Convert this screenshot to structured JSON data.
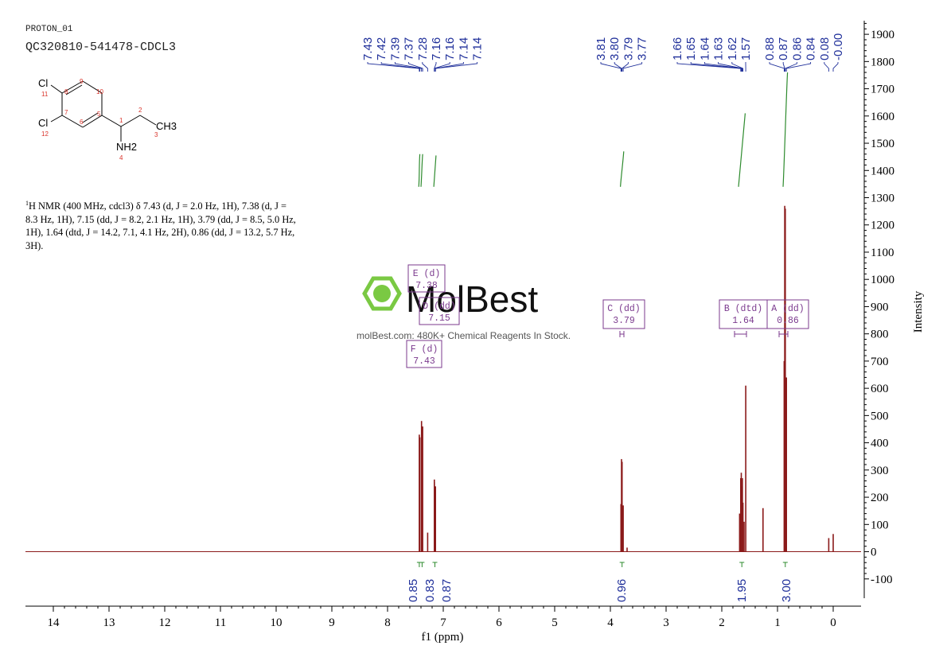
{
  "header": {
    "line1": "PROTON_01",
    "line2": "QC320810-541478-CDCL3"
  },
  "structure": {
    "atoms": [
      "Cl",
      "Cl",
      "CH3",
      "NH2"
    ],
    "atom_numbers": [
      "1",
      "2",
      "3",
      "4",
      "5",
      "6",
      "7",
      "8",
      "9",
      "10",
      "11",
      "12"
    ]
  },
  "nmr_text": {
    "nucleus_sup": "1",
    "line": "H NMR (400 MHz, cdcl3) δ 7.43 (d, J = 2.0 Hz, 1H), 7.38 (d, J = 8.3 Hz, 1H), 7.15 (dd, J = 8.2, 2.1 Hz, 1H), 3.79 (dd, J = 8.5, 5.0 Hz, 1H), 1.64 (dtd, J = 14.2, 7.1, 4.1 Hz, 2H), 0.86 (dd, J = 13.2, 5.7 Hz, 3H)."
  },
  "watermark": {
    "brand": "MolBest",
    "tagline": "molBest.com: 480K+ Chemical Reagents In Stock."
  },
  "colors": {
    "spectrum": "#8b1a1a",
    "peak_label": "#1f2f9a",
    "integral": "#2e8b2e",
    "multiplet": "#7b3a8e",
    "logo": "#7ac943"
  },
  "chart_data": {
    "type": "line",
    "xlabel": "f1 (ppm)",
    "ylabel": "Intensity",
    "xlim": [
      14.5,
      -0.5
    ],
    "ylim": [
      -200,
      1950
    ],
    "x_ticks": [
      14,
      13,
      12,
      11,
      10,
      9,
      8,
      7,
      6,
      5,
      4,
      3,
      2,
      1,
      0
    ],
    "y_ticks": [
      -100,
      0,
      100,
      200,
      300,
      400,
      500,
      600,
      700,
      800,
      900,
      1000,
      1100,
      1200,
      1300,
      1400,
      1500,
      1600,
      1700,
      1800,
      1900
    ],
    "peaks": [
      {
        "ppm": 7.43,
        "height": 430
      },
      {
        "ppm": 7.42,
        "height": 420
      },
      {
        "ppm": 7.39,
        "height": 480
      },
      {
        "ppm": 7.37,
        "height": 460
      },
      {
        "ppm": 7.28,
        "height": 70
      },
      {
        "ppm": 7.16,
        "height": 265
      },
      {
        "ppm": 7.16,
        "height": 255
      },
      {
        "ppm": 7.14,
        "height": 240
      },
      {
        "ppm": 7.14,
        "height": 235
      },
      {
        "ppm": 3.81,
        "height": 175
      },
      {
        "ppm": 3.8,
        "height": 340
      },
      {
        "ppm": 3.79,
        "height": 330
      },
      {
        "ppm": 3.77,
        "height": 170
      },
      {
        "ppm": 3.7,
        "height": 15
      },
      {
        "ppm": 1.68,
        "height": 140
      },
      {
        "ppm": 1.66,
        "height": 270
      },
      {
        "ppm": 1.65,
        "height": 290
      },
      {
        "ppm": 1.64,
        "height": 240
      },
      {
        "ppm": 1.63,
        "height": 270
      },
      {
        "ppm": 1.62,
        "height": 180
      },
      {
        "ppm": 1.6,
        "height": 110
      },
      {
        "ppm": 1.57,
        "height": 610
      },
      {
        "ppm": 1.26,
        "height": 160
      },
      {
        "ppm": 0.88,
        "height": 700
      },
      {
        "ppm": 0.87,
        "height": 1270
      },
      {
        "ppm": 0.86,
        "height": 1260
      },
      {
        "ppm": 0.84,
        "height": 640
      },
      {
        "ppm": 0.08,
        "height": 50
      },
      {
        "ppm": -0.0,
        "height": 65
      }
    ],
    "peak_labels": [
      {
        "text": "7.43",
        "ppm": 7.43
      },
      {
        "text": "7.42",
        "ppm": 7.42
      },
      {
        "text": "7.39",
        "ppm": 7.39
      },
      {
        "text": "7.37",
        "ppm": 7.37
      },
      {
        "text": "7.28",
        "ppm": 7.28
      },
      {
        "text": "7.16",
        "ppm": 7.16
      },
      {
        "text": "7.16",
        "ppm": 7.16
      },
      {
        "text": "7.14",
        "ppm": 7.14
      },
      {
        "text": "7.14",
        "ppm": 7.14
      },
      {
        "text": "3.81",
        "ppm": 3.81
      },
      {
        "text": "3.80",
        "ppm": 3.8
      },
      {
        "text": "3.79",
        "ppm": 3.79
      },
      {
        "text": "3.77",
        "ppm": 3.77
      },
      {
        "text": "1.66",
        "ppm": 1.66
      },
      {
        "text": "1.65",
        "ppm": 1.65
      },
      {
        "text": "1.64",
        "ppm": 1.64
      },
      {
        "text": "1.63",
        "ppm": 1.63
      },
      {
        "text": "1.62",
        "ppm": 1.62
      },
      {
        "text": "1.57",
        "ppm": 1.57
      },
      {
        "text": "0.88",
        "ppm": 0.88
      },
      {
        "text": "0.87",
        "ppm": 0.87
      },
      {
        "text": "0.86",
        "ppm": 0.86
      },
      {
        "text": "0.84",
        "ppm": 0.84
      },
      {
        "text": "0.08",
        "ppm": 0.08
      },
      {
        "text": "-0.00",
        "ppm": -0.0
      }
    ],
    "integrals": [
      {
        "value": "0.85",
        "ppm": 7.43
      },
      {
        "value": "0.83",
        "ppm": 7.38
      },
      {
        "value": "0.87",
        "ppm": 7.15
      },
      {
        "value": "0.96",
        "ppm": 3.79
      },
      {
        "value": "1.95",
        "ppm": 1.64
      },
      {
        "value": "3.00",
        "ppm": 0.86
      }
    ],
    "multiplets": [
      {
        "label": "E (d)",
        "shift": "7.38"
      },
      {
        "label": "D (dd)",
        "shift": "7.15"
      },
      {
        "label": "F (d)",
        "shift": "7.43"
      },
      {
        "label": "C (dd)",
        "shift": "3.79"
      },
      {
        "label": "B (dtd)",
        "shift": "1.64"
      },
      {
        "label": "A (dd)",
        "shift": "0.86"
      }
    ]
  }
}
